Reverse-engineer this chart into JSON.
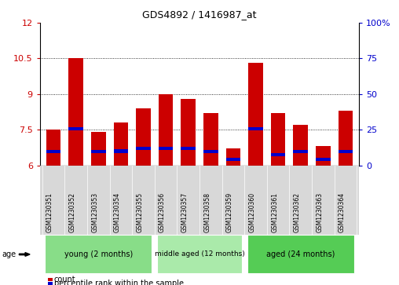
{
  "title": "GDS4892 / 1416987_at",
  "samples": [
    "GSM1230351",
    "GSM1230352",
    "GSM1230353",
    "GSM1230354",
    "GSM1230355",
    "GSM1230356",
    "GSM1230357",
    "GSM1230358",
    "GSM1230359",
    "GSM1230360",
    "GSM1230361",
    "GSM1230362",
    "GSM1230363",
    "GSM1230364"
  ],
  "count_values": [
    7.5,
    10.5,
    7.4,
    7.8,
    8.4,
    9.0,
    8.8,
    8.2,
    6.7,
    10.3,
    8.2,
    7.7,
    6.8,
    8.3
  ],
  "pct_bot": [
    6.53,
    7.48,
    6.53,
    6.53,
    6.63,
    6.63,
    6.63,
    6.53,
    6.18,
    7.48,
    6.38,
    6.53,
    6.18,
    6.53
  ],
  "pct_top": [
    6.65,
    7.6,
    6.65,
    6.68,
    6.78,
    6.78,
    6.78,
    6.65,
    6.32,
    7.6,
    6.52,
    6.65,
    6.32,
    6.65
  ],
  "ymin": 6,
  "ymax": 12,
  "yticks": [
    6,
    7.5,
    9,
    10.5,
    12
  ],
  "y2ticks": [
    0,
    25,
    50,
    75,
    100
  ],
  "bar_color": "#cc0000",
  "pct_color": "#0000cc",
  "base_value": 6,
  "group_labels": [
    "young (2 months)",
    "middle aged (12 months)",
    "aged (24 months)"
  ],
  "group_ranges": [
    [
      0,
      4
    ],
    [
      5,
      8
    ],
    [
      9,
      13
    ]
  ],
  "group_color_young": "#88dd88",
  "group_color_middle": "#aaeaaa",
  "group_color_aged": "#55cc55",
  "bar_width": 0.65,
  "background_color": "#ffffff"
}
